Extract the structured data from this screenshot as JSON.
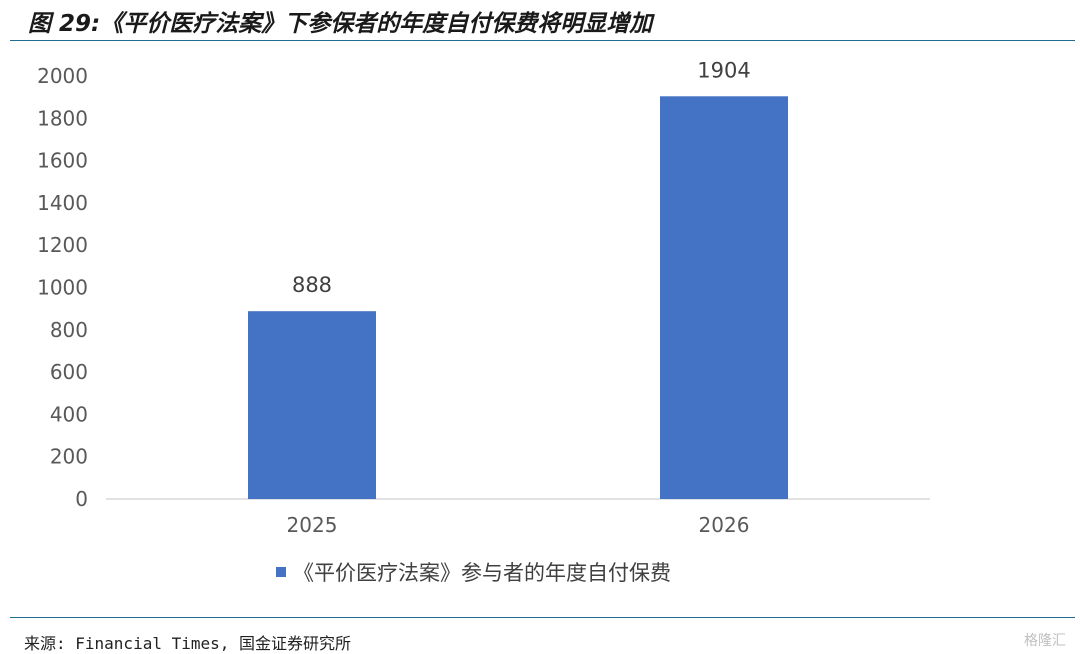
{
  "figure": {
    "title": "图 29:《平价医疗法案》下参保者的年度自付保费将明显增加",
    "source": "来源: Financial Times, 国金证券研究所",
    "watermark": "格隆汇"
  },
  "colors": {
    "bar": "#4472c4",
    "axis": "#d9d9d9",
    "rule": "#1e6e8c"
  },
  "chart_data": {
    "type": "bar",
    "categories": [
      "2025",
      "2026"
    ],
    "series": [
      {
        "name": "《平价医疗法案》参与者的年度自付保费",
        "values": [
          888,
          1904
        ]
      }
    ],
    "ylim": [
      0,
      2000
    ],
    "yticks": [
      0,
      200,
      400,
      600,
      800,
      1000,
      1200,
      1400,
      1600,
      1800,
      2000
    ],
    "data_labels": [
      "888",
      "1904"
    ],
    "legend_position": "bottom",
    "grid": false
  }
}
